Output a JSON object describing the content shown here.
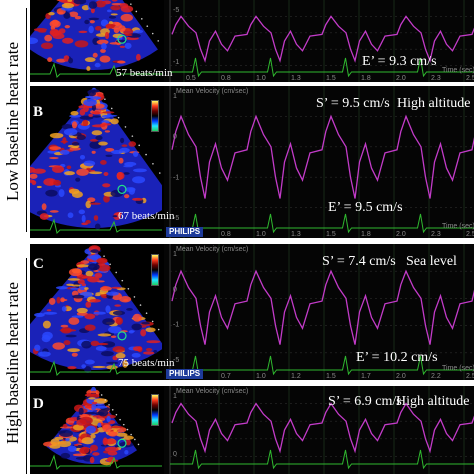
{
  "group_labels": {
    "low": "Low baseline heart rate",
    "high": "High baseline heart rate"
  },
  "brand": "PHILIPS",
  "panels": [
    {
      "letter": "",
      "bpm": "57 beats/min",
      "s_prime": "",
      "e_prime": "E’ = 9.3 cm/s",
      "condition": "",
      "axis_title": "",
      "ticks_x": [
        "0.5",
        "0.8",
        "1.0",
        "1.3",
        "1.5",
        "1.8",
        "2.0",
        "2.3",
        "2.5"
      ],
      "ticks_y": [
        "-5",
        "-1"
      ],
      "time_label": "Time (sec)"
    },
    {
      "letter": "B",
      "bpm": "67 beats/min",
      "s_prime": "S’ = 9.5 cm/s",
      "e_prime": "E’ = 9.5 cm/s",
      "condition": "High altitude",
      "axis_title": "Mean Velocity (cm/sec)",
      "ticks_x": [
        "0.5",
        "0.8",
        "1.0",
        "1.3",
        "1.5",
        "1.8",
        "2.0",
        "2.3",
        "2.5"
      ],
      "ticks_y": [
        "1",
        "0",
        "-1",
        "-5"
      ],
      "time_label": "Time (sec)"
    },
    {
      "letter": "C",
      "bpm": "75 beats/min",
      "s_prime": "S’ = 7.4 cm/s",
      "e_prime": "E’ = 10.2 cm/s",
      "condition": "Sea level",
      "axis_title": "Mean Velocity (cm/sec)",
      "ticks_x": [
        "0.4",
        "0.7",
        "1.0",
        "1.2",
        "1.5",
        "1.7",
        "2.0",
        "2.2",
        "2.5"
      ],
      "ticks_y": [
        "1",
        "0",
        "-1",
        "-5"
      ],
      "time_label": "Time (sec)"
    },
    {
      "letter": "D",
      "bpm": "",
      "s_prime": "S’ = 6.9 cm/s",
      "e_prime": "",
      "condition": "High altitude",
      "axis_title": "Mean Velocity (cm/sec)",
      "ticks_x": [],
      "ticks_y": [
        "1",
        "0"
      ],
      "time_label": ""
    }
  ],
  "colors": {
    "panel_bg": "#000000",
    "trace": "#c23bc8",
    "ecg": "#2fb82f",
    "grid": "#1f3a1f",
    "text": "#ffffff",
    "brand_bg": "#1d3a9a"
  }
}
